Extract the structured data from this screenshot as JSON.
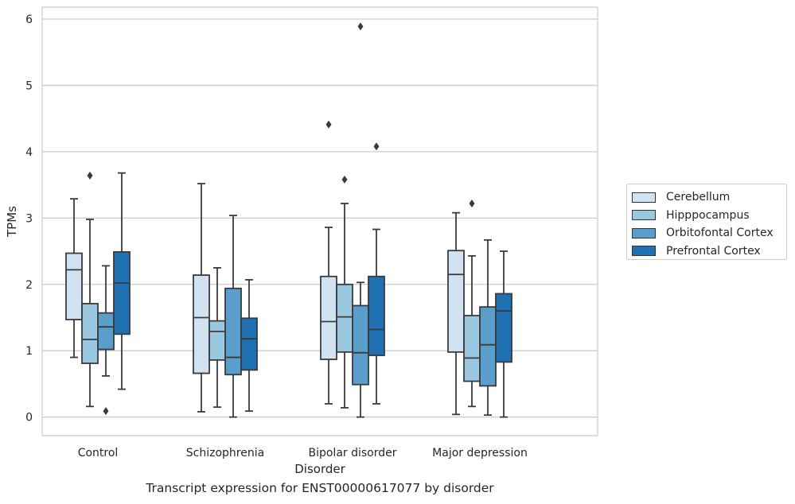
{
  "chart_data": {
    "type": "boxplot",
    "caption": "Transcript expression for ENST00000617077 by disorder",
    "xlabel": "Disorder",
    "ylabel": "TPMs",
    "ylim": [
      -0.28,
      6.18
    ],
    "yticks": [
      0,
      1,
      2,
      3,
      4,
      5,
      6
    ],
    "grid": true,
    "legend_position": "right",
    "categories": [
      "Control",
      "Schizophrenia",
      "Bipolar disorder",
      "Major depression"
    ],
    "series": [
      {
        "name": "Cerebellum",
        "color": "#d1e2f2",
        "boxes": [
          {
            "whislo": 0.9,
            "q1": 1.47,
            "med": 2.22,
            "q3": 2.47,
            "whishi": 3.29,
            "fliers": []
          },
          {
            "whislo": 0.08,
            "q1": 0.66,
            "med": 1.5,
            "q3": 2.14,
            "whishi": 3.52,
            "fliers": []
          },
          {
            "whislo": 0.2,
            "q1": 0.87,
            "med": 1.44,
            "q3": 2.12,
            "whishi": 2.86,
            "fliers": [
              4.41
            ]
          },
          {
            "whislo": 0.04,
            "q1": 0.98,
            "med": 2.15,
            "q3": 2.51,
            "whishi": 3.08,
            "fliers": []
          }
        ]
      },
      {
        "name": "Hipppocampus",
        "color": "#9ac8e0",
        "boxes": [
          {
            "whislo": 0.16,
            "q1": 0.81,
            "med": 1.17,
            "q3": 1.71,
            "whishi": 2.98,
            "fliers": [
              3.64
            ]
          },
          {
            "whislo": 0.15,
            "q1": 0.86,
            "med": 1.29,
            "q3": 1.45,
            "whishi": 2.25,
            "fliers": []
          },
          {
            "whislo": 0.14,
            "q1": 0.98,
            "med": 1.51,
            "q3": 2.0,
            "whishi": 3.22,
            "fliers": [
              3.58
            ]
          },
          {
            "whislo": 0.16,
            "q1": 0.54,
            "med": 0.89,
            "q3": 1.53,
            "whishi": 2.43,
            "fliers": [
              3.22
            ]
          }
        ]
      },
      {
        "name": "Orbitofontal Cortex",
        "color": "#5a9ecc",
        "boxes": [
          {
            "whislo": 0.62,
            "q1": 1.02,
            "med": 1.36,
            "q3": 1.57,
            "whishi": 2.28,
            "fliers": [
              0.09
            ]
          },
          {
            "whislo": 0.0,
            "q1": 0.64,
            "med": 0.9,
            "q3": 1.94,
            "whishi": 3.04,
            "fliers": []
          },
          {
            "whislo": 0.0,
            "q1": 0.49,
            "med": 0.97,
            "q3": 1.68,
            "whishi": 2.03,
            "fliers": [
              5.89
            ]
          },
          {
            "whislo": 0.03,
            "q1": 0.47,
            "med": 1.09,
            "q3": 1.66,
            "whishi": 2.67,
            "fliers": []
          }
        ]
      },
      {
        "name": "Prefrontal Cortex",
        "color": "#2070b4",
        "boxes": [
          {
            "whislo": 0.42,
            "q1": 1.25,
            "med": 2.02,
            "q3": 2.49,
            "whishi": 3.68,
            "fliers": []
          },
          {
            "whislo": 0.09,
            "q1": 0.71,
            "med": 1.18,
            "q3": 1.49,
            "whishi": 2.07,
            "fliers": []
          },
          {
            "whislo": 0.2,
            "q1": 0.93,
            "med": 1.32,
            "q3": 2.12,
            "whishi": 2.83,
            "fliers": [
              4.08
            ]
          },
          {
            "whislo": 0.0,
            "q1": 0.83,
            "med": 1.6,
            "q3": 1.86,
            "whishi": 2.5,
            "fliers": []
          }
        ]
      }
    ]
  }
}
